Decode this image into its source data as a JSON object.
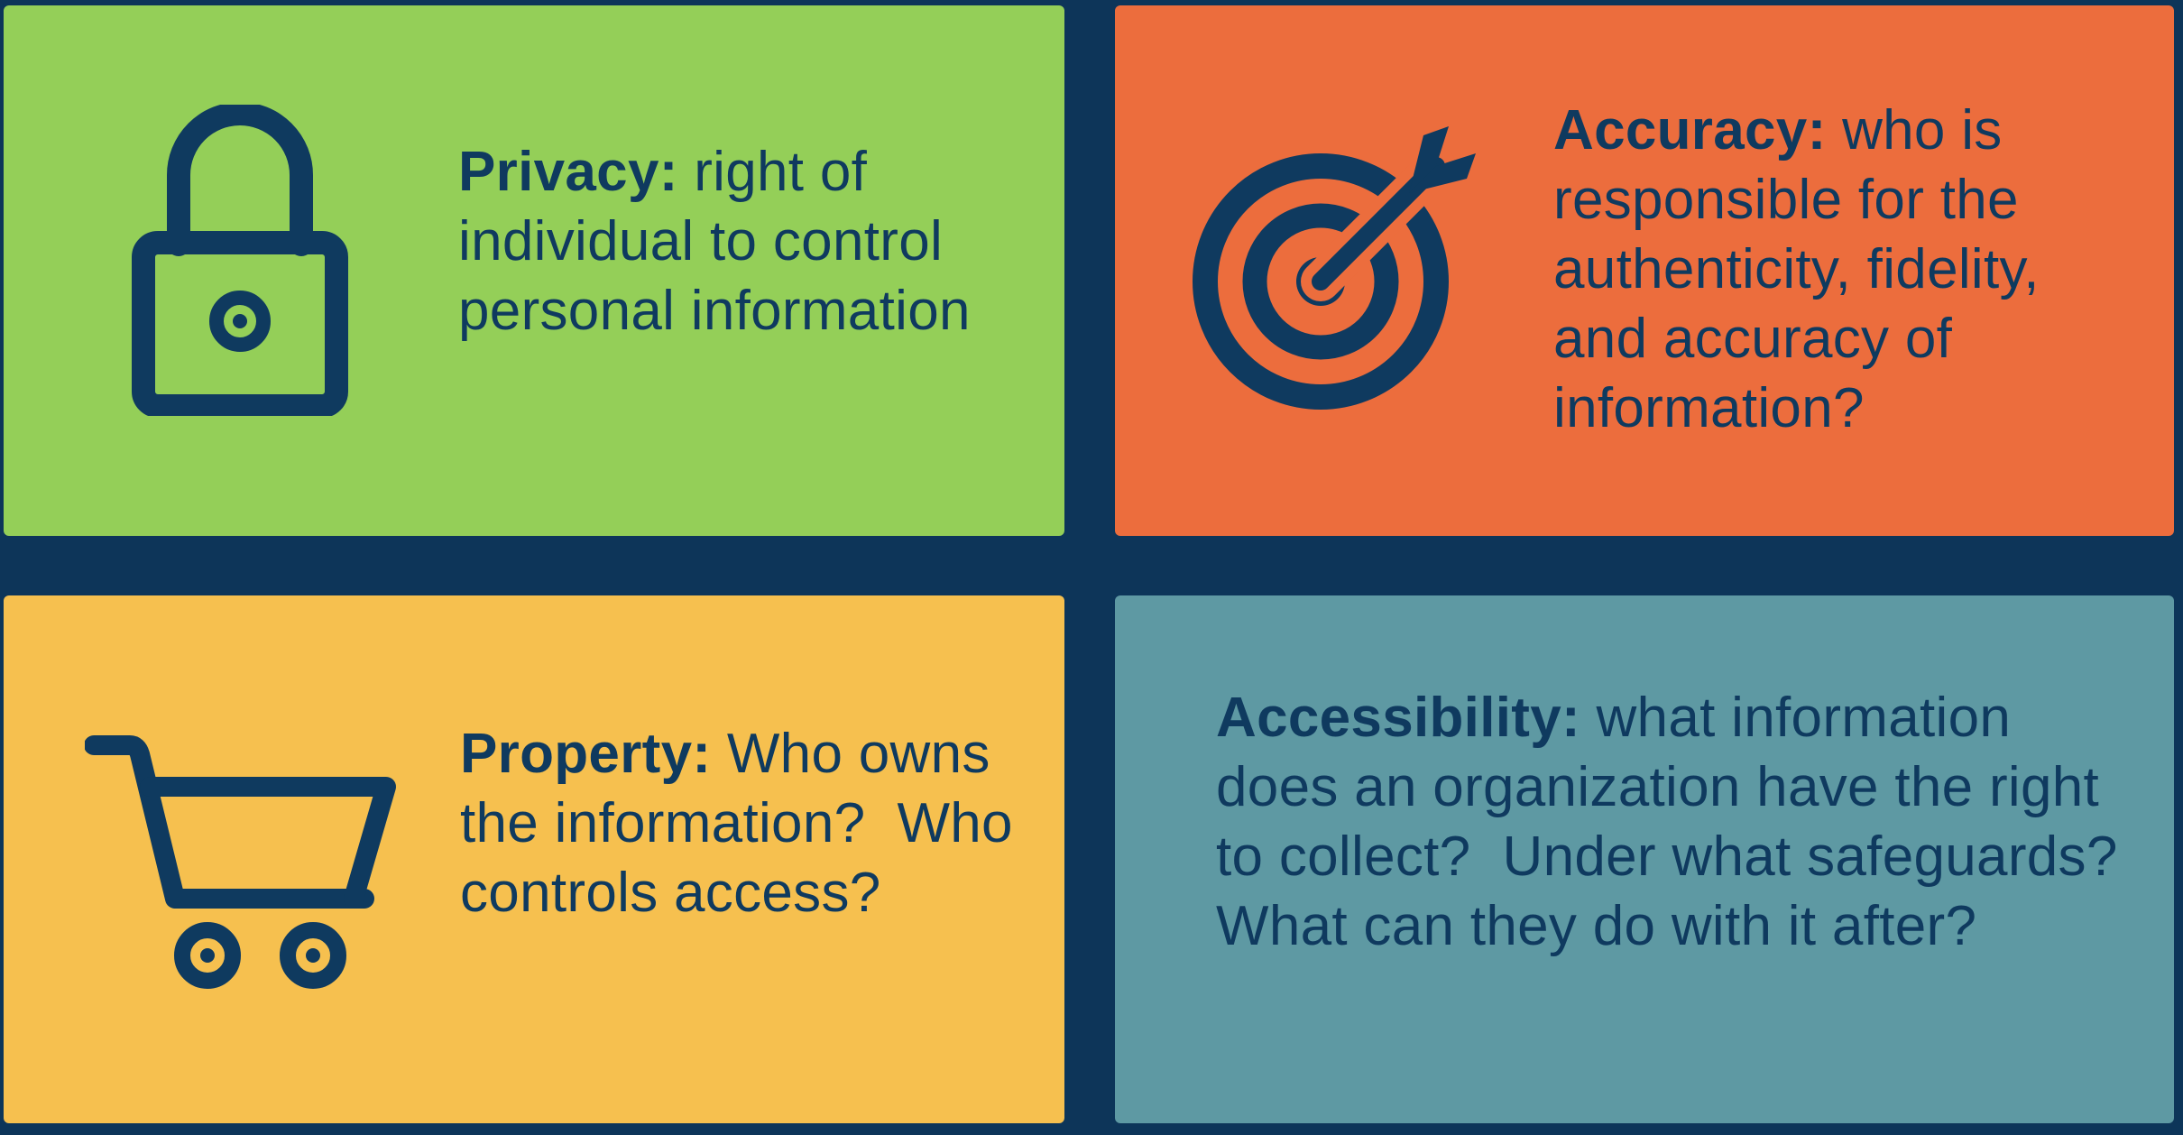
{
  "tiles": [
    {
      "term": "Privacy:",
      "description": "right of individual to control personal information",
      "icon": "lock-icon",
      "color": "#94cf58"
    },
    {
      "term": "Accuracy:",
      "description": "who is responsible for the authenticity, fidelity, and accuracy of information?",
      "icon": "target-icon",
      "color": "#ec6d3d"
    },
    {
      "term": "Property:",
      "description": "Who owns the information?  Who controls access?",
      "icon": "shopping-cart-icon",
      "color": "#f6c04f"
    },
    {
      "term": "Accessibility:",
      "description": "what information does an organization have the right to collect?  Under what safeguards? What can they do with it after?",
      "color": "#5e99a3"
    }
  ],
  "colors": {
    "background": "#0d3559",
    "text": "#0f3a5f"
  }
}
